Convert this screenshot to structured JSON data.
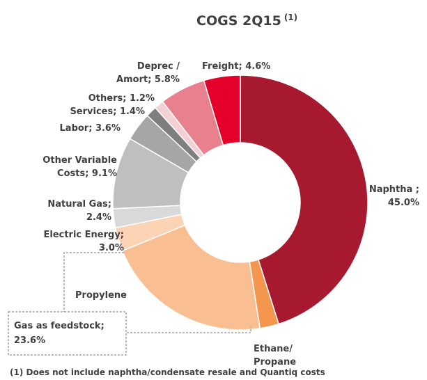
{
  "chart_data": {
    "type": "pie",
    "title": "COGS 2Q15",
    "title_superscript": "(1)",
    "footnote": "(1) Does not include naphtha/condensate resale  and Quantiq costs",
    "group_label": [
      "Gas as feedstock;",
      "23.6%"
    ],
    "slices": [
      {
        "name": "Naphtha",
        "value": 45.0,
        "color": "#a6192e",
        "label": [
          "Naphtha ;",
          "45.0%"
        ]
      },
      {
        "name": "Ethane/Propane",
        "value": 2.4,
        "color": "#f5964f",
        "label": [
          "Ethane/",
          "Propane"
        ]
      },
      {
        "name": "Propylene",
        "value": 21.2,
        "color": "#f9bf93",
        "label": [
          "Propylene"
        ]
      },
      {
        "name": "Electric Energy",
        "value": 3.0,
        "color": "#fcd4b5",
        "label": [
          "Electric Energy;",
          "3.0%"
        ]
      },
      {
        "name": "Natural Gas",
        "value": 2.4,
        "color": "#d9d9d9",
        "label": [
          "Natural Gas;",
          "2.4%"
        ]
      },
      {
        "name": "Other Variable Costs",
        "value": 9.1,
        "color": "#bfbfbf",
        "label": [
          "Other Variable",
          "Costs; 9.1%"
        ]
      },
      {
        "name": "Labor",
        "value": 3.6,
        "color": "#a6a6a6",
        "label": [
          "Labor; 3.6%"
        ]
      },
      {
        "name": "Services",
        "value": 1.4,
        "color": "#7f7f7f",
        "label": [
          "Services; 1.4%"
        ]
      },
      {
        "name": "Others",
        "value": 1.2,
        "color": "#f2d0d3",
        "label": [
          "Others; 1.2%"
        ]
      },
      {
        "name": "Deprec / Amort",
        "value": 5.8,
        "color": "#e8808d",
        "label": [
          "Deprec /",
          "Amort; 5.8%"
        ]
      },
      {
        "name": "Freight",
        "value": 4.6,
        "color": "#e4002b",
        "label": [
          "Freight; 4.6%"
        ]
      }
    ]
  }
}
